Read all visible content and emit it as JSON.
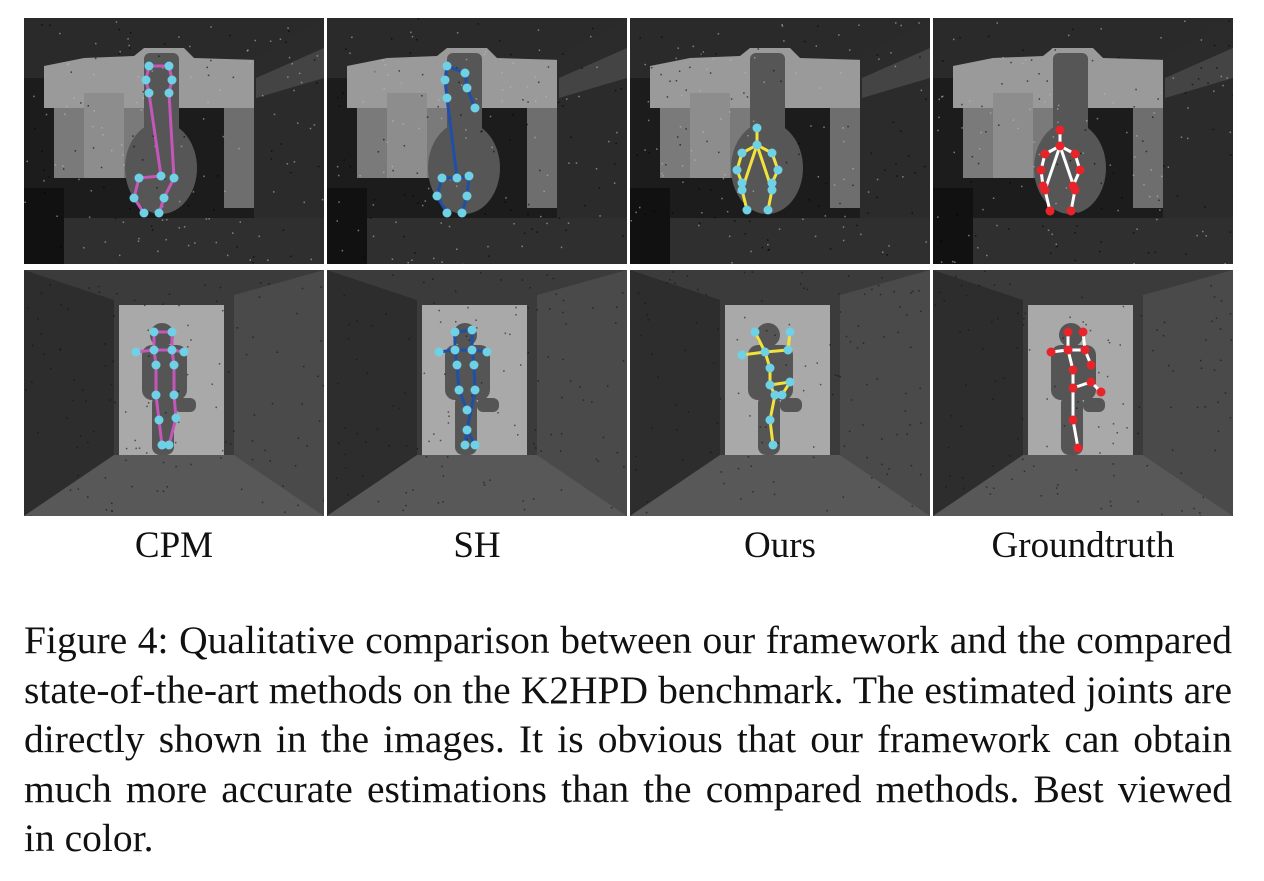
{
  "figure": {
    "columns": [
      {
        "label": "CPM",
        "skeleton_color": "#c457b8"
      },
      {
        "label": "SH",
        "skeleton_color": "#1f4fa8"
      },
      {
        "label": "Ours",
        "skeleton_color": "#f2e23c"
      },
      {
        "label": "Groundtruth",
        "skeleton_color": "#ffffff"
      }
    ],
    "joint_colors": {
      "predicted": "#6ed1e6",
      "groundtruth": "#e8232a"
    },
    "rows": [
      "depth-scene-room",
      "depth-scene-corridor"
    ]
  },
  "caption": {
    "text": "Figure 4: Qualitative comparison between our framework and the compared state-of-the-art methods on the K2HPD benchmark. The estimated joints are directly shown in the images. It is obvious that our framework can obtain much more accurate estimations than the compared methods. Best viewed in color."
  }
}
